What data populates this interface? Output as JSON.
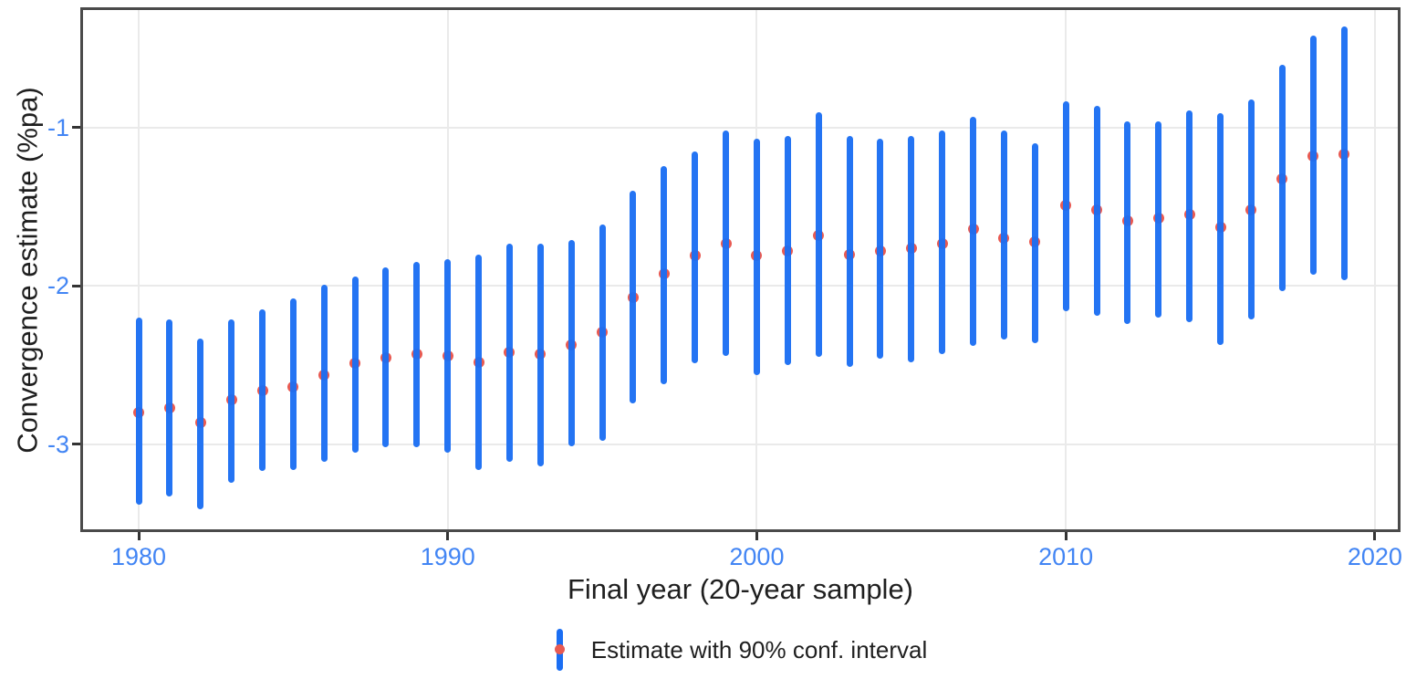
{
  "colors": {
    "bar_blue": "#1b6ef3",
    "dot_red": "#e85a52",
    "tick_label_blue": "#4285f4",
    "axis_text": "#1f1f1f",
    "gridline": "#eaeaea",
    "panel_border": "#4a4a4a"
  },
  "chart_data": {
    "type": "errorbar",
    "title": "",
    "xlabel": "Final year (20-year sample)",
    "ylabel": "Convergence estimate (%pa)",
    "grid": true,
    "legend": {
      "label": "Estimate with 90% conf. interval",
      "position": "bottom"
    },
    "xlim": [
      1978.11,
      2020.83
    ],
    "ylim": [
      -3.554,
      -0.239
    ],
    "x_ticks": [
      1980,
      1990,
      2000,
      2010,
      2020
    ],
    "x_tick_labels": [
      "1980",
      "1990",
      "2000",
      "2010",
      "2020"
    ],
    "y_ticks": [
      -1,
      -2,
      -3
    ],
    "y_tick_labels": [
      "-1",
      "-2",
      "-3"
    ],
    "series": [
      {
        "name": "Estimate with 90% conf. interval",
        "points": [
          {
            "year": 1980,
            "estimate": -2.8,
            "lo": -3.38,
            "hi": -2.2
          },
          {
            "year": 1981,
            "estimate": -2.77,
            "lo": -3.33,
            "hi": -2.21
          },
          {
            "year": 1982,
            "estimate": -2.86,
            "lo": -3.41,
            "hi": -2.33
          },
          {
            "year": 1983,
            "estimate": -2.72,
            "lo": -3.24,
            "hi": -2.21
          },
          {
            "year": 1984,
            "estimate": -2.66,
            "lo": -3.17,
            "hi": -2.15
          },
          {
            "year": 1985,
            "estimate": -2.64,
            "lo": -3.16,
            "hi": -2.08
          },
          {
            "year": 1986,
            "estimate": -2.56,
            "lo": -3.11,
            "hi": -1.99
          },
          {
            "year": 1987,
            "estimate": -2.49,
            "lo": -3.05,
            "hi": -1.94
          },
          {
            "year": 1988,
            "estimate": -2.45,
            "lo": -3.02,
            "hi": -1.88
          },
          {
            "year": 1989,
            "estimate": -2.43,
            "lo": -3.02,
            "hi": -1.85
          },
          {
            "year": 1990,
            "estimate": -2.44,
            "lo": -3.05,
            "hi": -1.83
          },
          {
            "year": 1991,
            "estimate": -2.48,
            "lo": -3.16,
            "hi": -1.8
          },
          {
            "year": 1992,
            "estimate": -2.42,
            "lo": -3.11,
            "hi": -1.73
          },
          {
            "year": 1993,
            "estimate": -2.43,
            "lo": -3.14,
            "hi": -1.73
          },
          {
            "year": 1994,
            "estimate": -2.37,
            "lo": -3.01,
            "hi": -1.71
          },
          {
            "year": 1995,
            "estimate": -2.29,
            "lo": -2.98,
            "hi": -1.61
          },
          {
            "year": 1996,
            "estimate": -2.07,
            "lo": -2.74,
            "hi": -1.4
          },
          {
            "year": 1997,
            "estimate": -1.92,
            "lo": -2.62,
            "hi": -1.24
          },
          {
            "year": 1998,
            "estimate": -1.81,
            "lo": -2.49,
            "hi": -1.15
          },
          {
            "year": 1999,
            "estimate": -1.73,
            "lo": -2.44,
            "hi": -1.02
          },
          {
            "year": 2000,
            "estimate": -1.81,
            "lo": -2.56,
            "hi": -1.07
          },
          {
            "year": 2001,
            "estimate": -1.78,
            "lo": -2.5,
            "hi": -1.05
          },
          {
            "year": 2002,
            "estimate": -1.68,
            "lo": -2.45,
            "hi": -0.9
          },
          {
            "year": 2003,
            "estimate": -1.8,
            "lo": -2.51,
            "hi": -1.05
          },
          {
            "year": 2004,
            "estimate": -1.78,
            "lo": -2.46,
            "hi": -1.07
          },
          {
            "year": 2005,
            "estimate": -1.76,
            "lo": -2.48,
            "hi": -1.05
          },
          {
            "year": 2006,
            "estimate": -1.73,
            "lo": -2.43,
            "hi": -1.02
          },
          {
            "year": 2007,
            "estimate": -1.64,
            "lo": -2.38,
            "hi": -0.93
          },
          {
            "year": 2008,
            "estimate": -1.7,
            "lo": -2.34,
            "hi": -1.02
          },
          {
            "year": 2009,
            "estimate": -1.72,
            "lo": -2.36,
            "hi": -1.1
          },
          {
            "year": 2010,
            "estimate": -1.49,
            "lo": -2.16,
            "hi": -0.83
          },
          {
            "year": 2011,
            "estimate": -1.52,
            "lo": -2.19,
            "hi": -0.86
          },
          {
            "year": 2012,
            "estimate": -1.59,
            "lo": -2.24,
            "hi": -0.96
          },
          {
            "year": 2013,
            "estimate": -1.57,
            "lo": -2.2,
            "hi": -0.96
          },
          {
            "year": 2014,
            "estimate": -1.55,
            "lo": -2.23,
            "hi": -0.89
          },
          {
            "year": 2015,
            "estimate": -1.63,
            "lo": -2.37,
            "hi": -0.91
          },
          {
            "year": 2016,
            "estimate": -1.52,
            "lo": -2.21,
            "hi": -0.82
          },
          {
            "year": 2017,
            "estimate": -1.32,
            "lo": -2.03,
            "hi": -0.6
          },
          {
            "year": 2018,
            "estimate": -1.18,
            "lo": -1.93,
            "hi": -0.42
          },
          {
            "year": 2019,
            "estimate": -1.17,
            "lo": -1.96,
            "hi": -0.36
          }
        ]
      }
    ]
  }
}
